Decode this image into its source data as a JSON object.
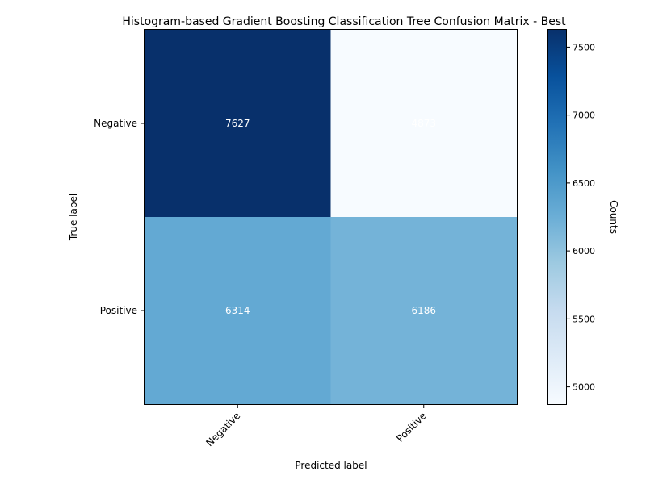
{
  "chart_data": {
    "type": "heatmap",
    "title": "Histogram-based Gradient Boosting Classification Tree Confusion Matrix - Best",
    "xlabel": "Predicted label",
    "ylabel": "True label",
    "x_categories": [
      "Negative",
      "Positive"
    ],
    "y_categories": [
      "Negative",
      "Positive"
    ],
    "values": [
      [
        7627,
        4873
      ],
      [
        6314,
        6186
      ]
    ],
    "cell_labels": [
      [
        "7627",
        "4873"
      ],
      [
        "6314",
        "6186"
      ]
    ],
    "colormap": "Blues",
    "colorbar": {
      "label": "Counts",
      "range": [
        4873,
        7627
      ],
      "ticks": [
        5000,
        5500,
        6000,
        6500,
        7000,
        7500
      ],
      "tick_labels": [
        "5000",
        "5500",
        "6000",
        "6500",
        "7000",
        "7500"
      ]
    },
    "grid": false
  }
}
